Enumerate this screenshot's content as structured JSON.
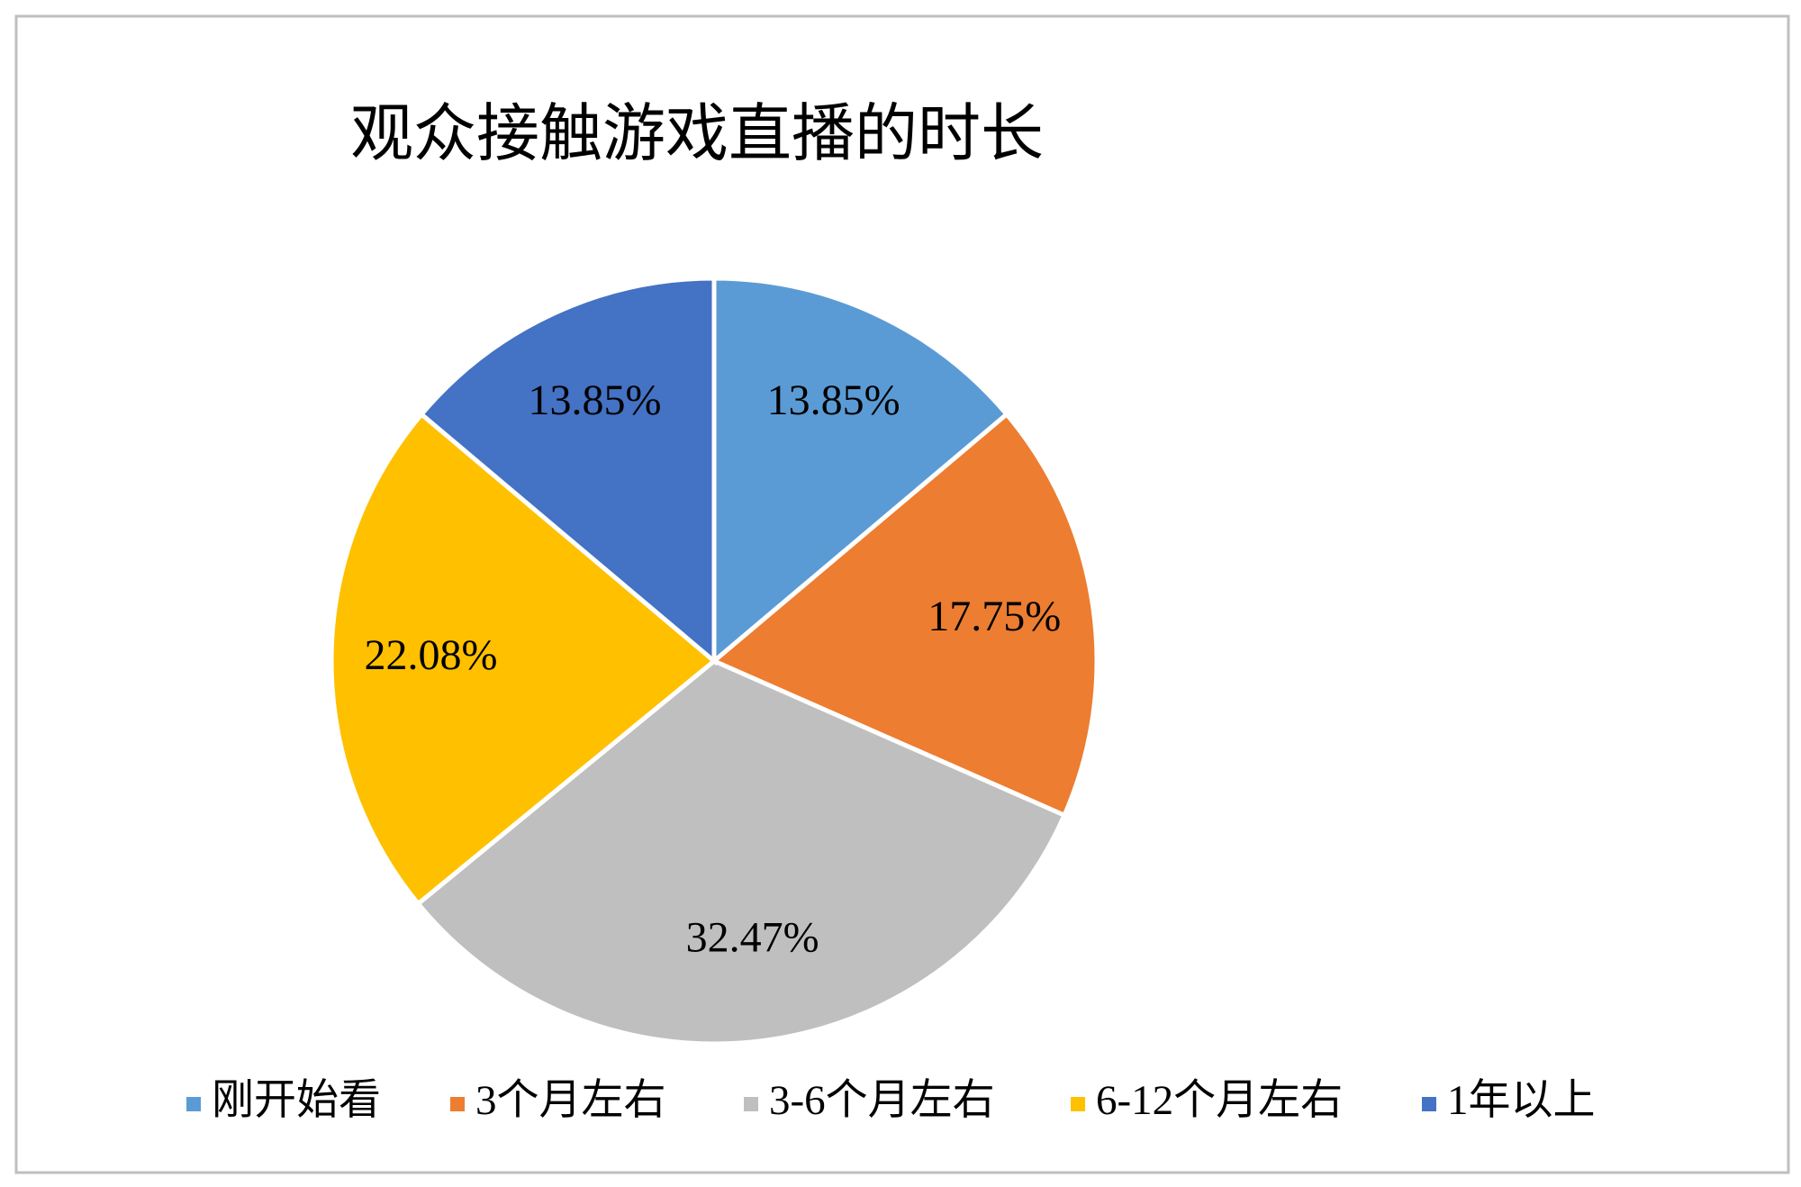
{
  "chart_data": {
    "type": "pie",
    "title": "观众接触游戏直播的时长",
    "categories": [
      "刚开始看",
      "3个月左右",
      "3-6个月左右",
      "6-12个月左右",
      "1年以上"
    ],
    "values": [
      13.85,
      17.75,
      32.47,
      22.08,
      13.85
    ],
    "value_labels": [
      "13.85%",
      "17.75%",
      "32.47%",
      "22.08%",
      "13.85%"
    ],
    "colors": [
      "#5b9bd5",
      "#ed7d31",
      "#bfbfbf",
      "#ffc000",
      "#4472c4"
    ],
    "legend": "bottom"
  }
}
